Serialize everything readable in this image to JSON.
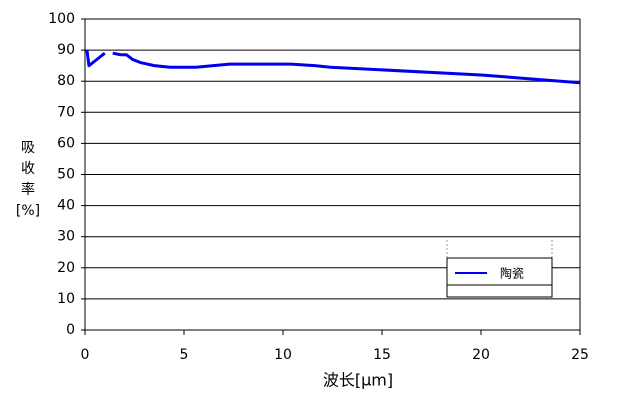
{
  "chart_data": {
    "type": "line",
    "y_label_lines": [
      "吸",
      "收",
      "率",
      "[%]"
    ],
    "x_label": "波长[μm]",
    "x": [
      0.1,
      0.2,
      0.4,
      0.7,
      1.0,
      1.2,
      1.4,
      1.8,
      2.1,
      2.4,
      2.8,
      3.5,
      4.3,
      5.6,
      7.3,
      10.4,
      11.6,
      12.4,
      20,
      25
    ],
    "series": [
      {
        "name": "陶瓷",
        "color": "#0000ee",
        "values": [
          90,
          85,
          86,
          87.5,
          89,
          null,
          89,
          88.5,
          88.5,
          87,
          86,
          85,
          84.5,
          84.5,
          85.5,
          85.5,
          85,
          84.5,
          82,
          79.5
        ]
      }
    ],
    "xlim": [
      0,
      25
    ],
    "xticks": [
      0,
      5,
      10,
      15,
      20,
      25
    ],
    "ylim": [
      0,
      100
    ],
    "yticks": [
      0,
      10,
      20,
      30,
      40,
      50,
      60,
      70,
      80,
      90,
      100
    ],
    "grid": true,
    "legend": "lower right"
  }
}
